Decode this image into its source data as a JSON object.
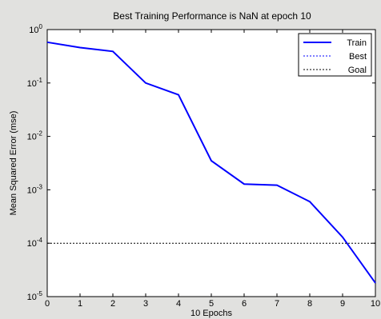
{
  "chart_data": {
    "type": "line",
    "title": "Best Training Performance is NaN at epoch 10",
    "xlabel": "10 Epochs",
    "ylabel": "Mean Squared Error  (mse)",
    "xlim": [
      0,
      10
    ],
    "ylim": [
      1e-05,
      1
    ],
    "yscale": "log",
    "grid": false,
    "legend_position": "top-right",
    "x_ticks": [
      "0",
      "1",
      "2",
      "3",
      "4",
      "5",
      "6",
      "7",
      "8",
      "9",
      "10"
    ],
    "y_ticks": [
      {
        "base": "10",
        "exp": "0"
      },
      {
        "base": "10",
        "exp": "-1"
      },
      {
        "base": "10",
        "exp": "-2"
      },
      {
        "base": "10",
        "exp": "-3"
      },
      {
        "base": "10",
        "exp": "-4"
      },
      {
        "base": "10",
        "exp": "-5"
      }
    ],
    "series": [
      {
        "name": "Train",
        "color": "#0000ff",
        "style": "solid",
        "x": [
          0,
          1,
          2,
          3,
          4,
          5,
          6,
          7,
          8,
          9,
          10
        ],
        "y": [
          0.58,
          0.46,
          0.39,
          0.1,
          0.06,
          0.0035,
          0.00128,
          0.00122,
          0.0006,
          0.00013,
          1.8e-05
        ]
      },
      {
        "name": "Best",
        "color": "#0000ff",
        "style": "dotted",
        "x": [],
        "y": []
      },
      {
        "name": "Goal",
        "color": "#000000",
        "style": "dotted",
        "x": [
          0,
          10
        ],
        "y": [
          0.0001,
          0.0001
        ]
      }
    ]
  }
}
